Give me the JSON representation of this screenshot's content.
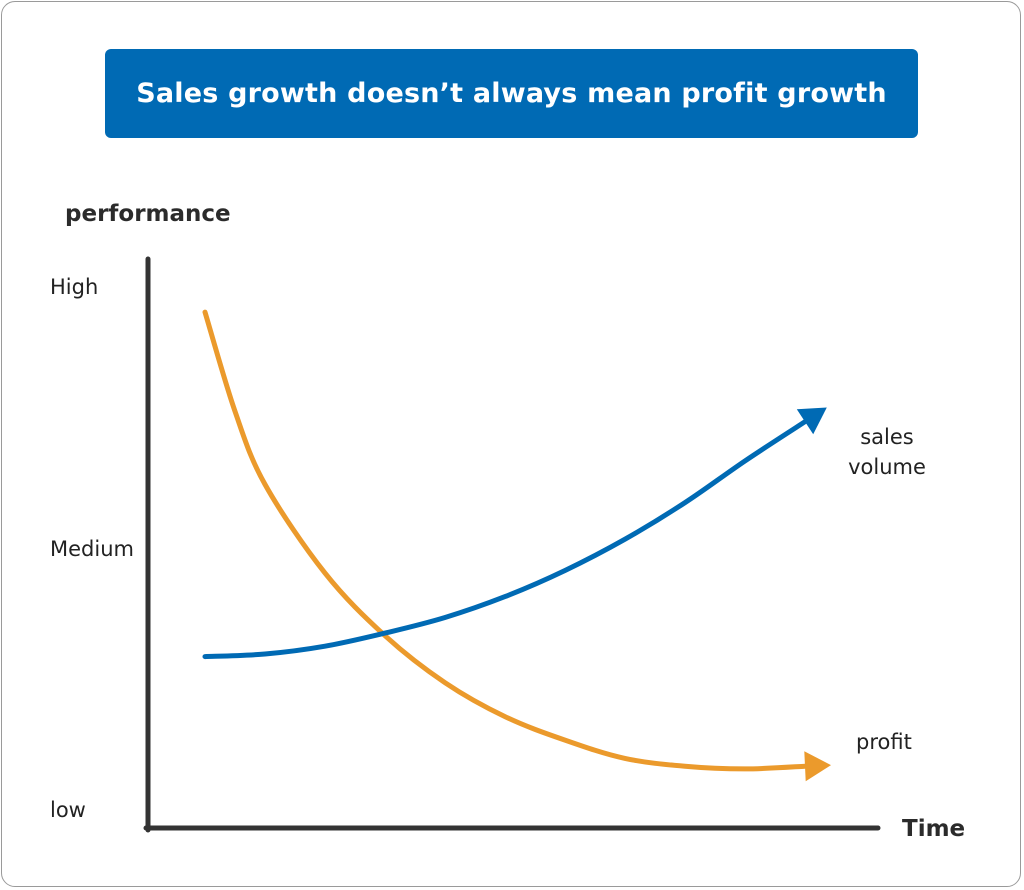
{
  "chart_data": {
    "type": "line",
    "title": "Sales growth doesn’t always mean profit growth",
    "ylabel": "performance",
    "xlabel": "Time",
    "y_ticks": [
      "low",
      "Medium",
      "High"
    ],
    "ylim": [
      0,
      2
    ],
    "xlim": [
      0,
      1
    ],
    "grid": false,
    "legend": "inline-right",
    "series": [
      {
        "name": [
          "sales",
          "volume"
        ],
        "color": "#006ab4",
        "x": [
          0.0,
          0.1,
          0.2,
          0.3,
          0.4,
          0.5,
          0.6,
          0.7,
          0.8,
          0.9,
          1.0
        ],
        "y": [
          0.58,
          0.59,
          0.62,
          0.67,
          0.73,
          0.81,
          0.91,
          1.03,
          1.17,
          1.33,
          1.48
        ]
      },
      {
        "name": [
          "profit"
        ],
        "color": "#eb9a2c",
        "x": [
          0.0,
          0.05,
          0.1,
          0.2,
          0.3,
          0.4,
          0.5,
          0.6,
          0.7,
          0.8,
          0.9,
          1.0
        ],
        "y": [
          1.9,
          1.52,
          1.24,
          0.9,
          0.66,
          0.48,
          0.35,
          0.26,
          0.19,
          0.16,
          0.15,
          0.16
        ]
      }
    ]
  }
}
